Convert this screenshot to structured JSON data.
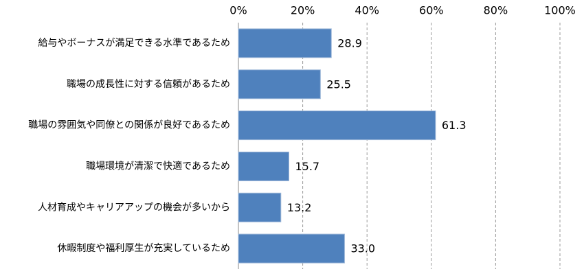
{
  "chart_data": {
    "type": "bar",
    "orientation": "horizontal",
    "categories": [
      "給与やボーナスが満足できる水準であるため",
      "職場の成長性に対する信頼があるため",
      "職場の雰囲気や同僚との関係が良好であるため",
      "職場環境が清潔で快適であるため",
      "人材育成やキャリアアップの機会が多いから",
      "休暇制度や福利厚生が充実しているため"
    ],
    "values": [
      28.9,
      25.5,
      61.3,
      15.7,
      13.2,
      33.0
    ],
    "value_labels": [
      "28.9",
      "25.5",
      "61.3",
      "15.7",
      "13.2",
      "33.0"
    ],
    "color": "#4f81bd",
    "xlim": [
      0,
      100
    ],
    "xticks": [
      {
        "value": 0,
        "label": "0%"
      },
      {
        "value": 20,
        "label": "20%"
      },
      {
        "value": 40,
        "label": "40%"
      },
      {
        "value": 60,
        "label": "60%"
      },
      {
        "value": 80,
        "label": "80%"
      },
      {
        "value": 100,
        "label": "100%"
      }
    ],
    "grid": true
  }
}
